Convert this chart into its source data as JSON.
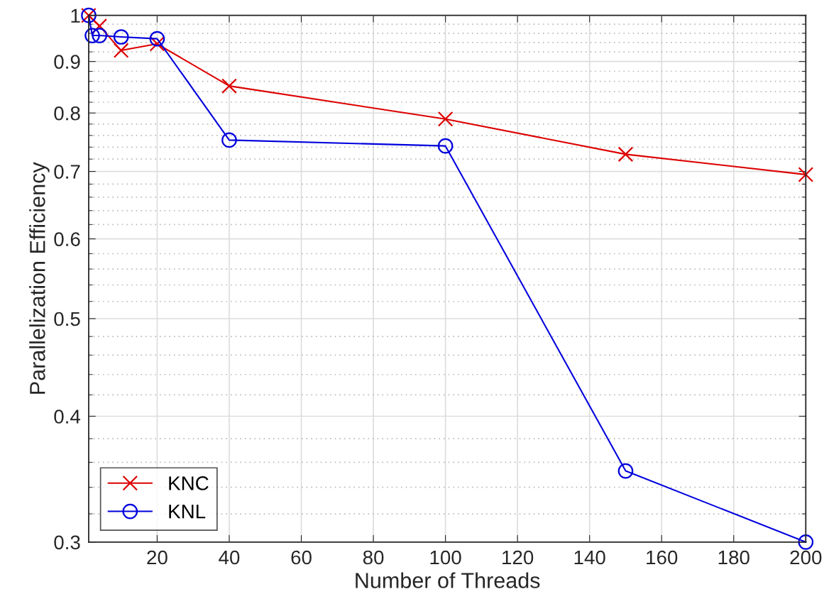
{
  "chart_data": {
    "type": "line",
    "xlabel": "Number of Threads",
    "ylabel": "Parallelization Efficiency",
    "log": "y",
    "grid": true,
    "legend": "bottom left",
    "xlim": [
      1,
      200
    ],
    "xticks": [
      20,
      40,
      60,
      80,
      100,
      120,
      140,
      160,
      180,
      200
    ],
    "ylim": [
      0.3,
      1
    ],
    "yticks": [
      0.3,
      0.4,
      0.5,
      0.6,
      0.7,
      0.8,
      0.9,
      1
    ],
    "series": [
      {
        "name": "KNC",
        "color": "#dd0000",
        "marker": "cross",
        "x": [
          1,
          4,
          10,
          20,
          40,
          100,
          150,
          200
        ],
        "values": [
          1.0,
          0.976,
          0.923,
          0.937,
          0.851,
          0.789,
          0.728,
          0.695
        ]
      },
      {
        "name": "KNL",
        "color": "#0000dd",
        "marker": "circle",
        "x": [
          1,
          2,
          4,
          10,
          20,
          40,
          100,
          150,
          200
        ],
        "values": [
          1.0,
          0.955,
          0.955,
          0.952,
          0.948,
          0.752,
          0.742,
          0.353,
          0.3
        ]
      }
    ]
  }
}
